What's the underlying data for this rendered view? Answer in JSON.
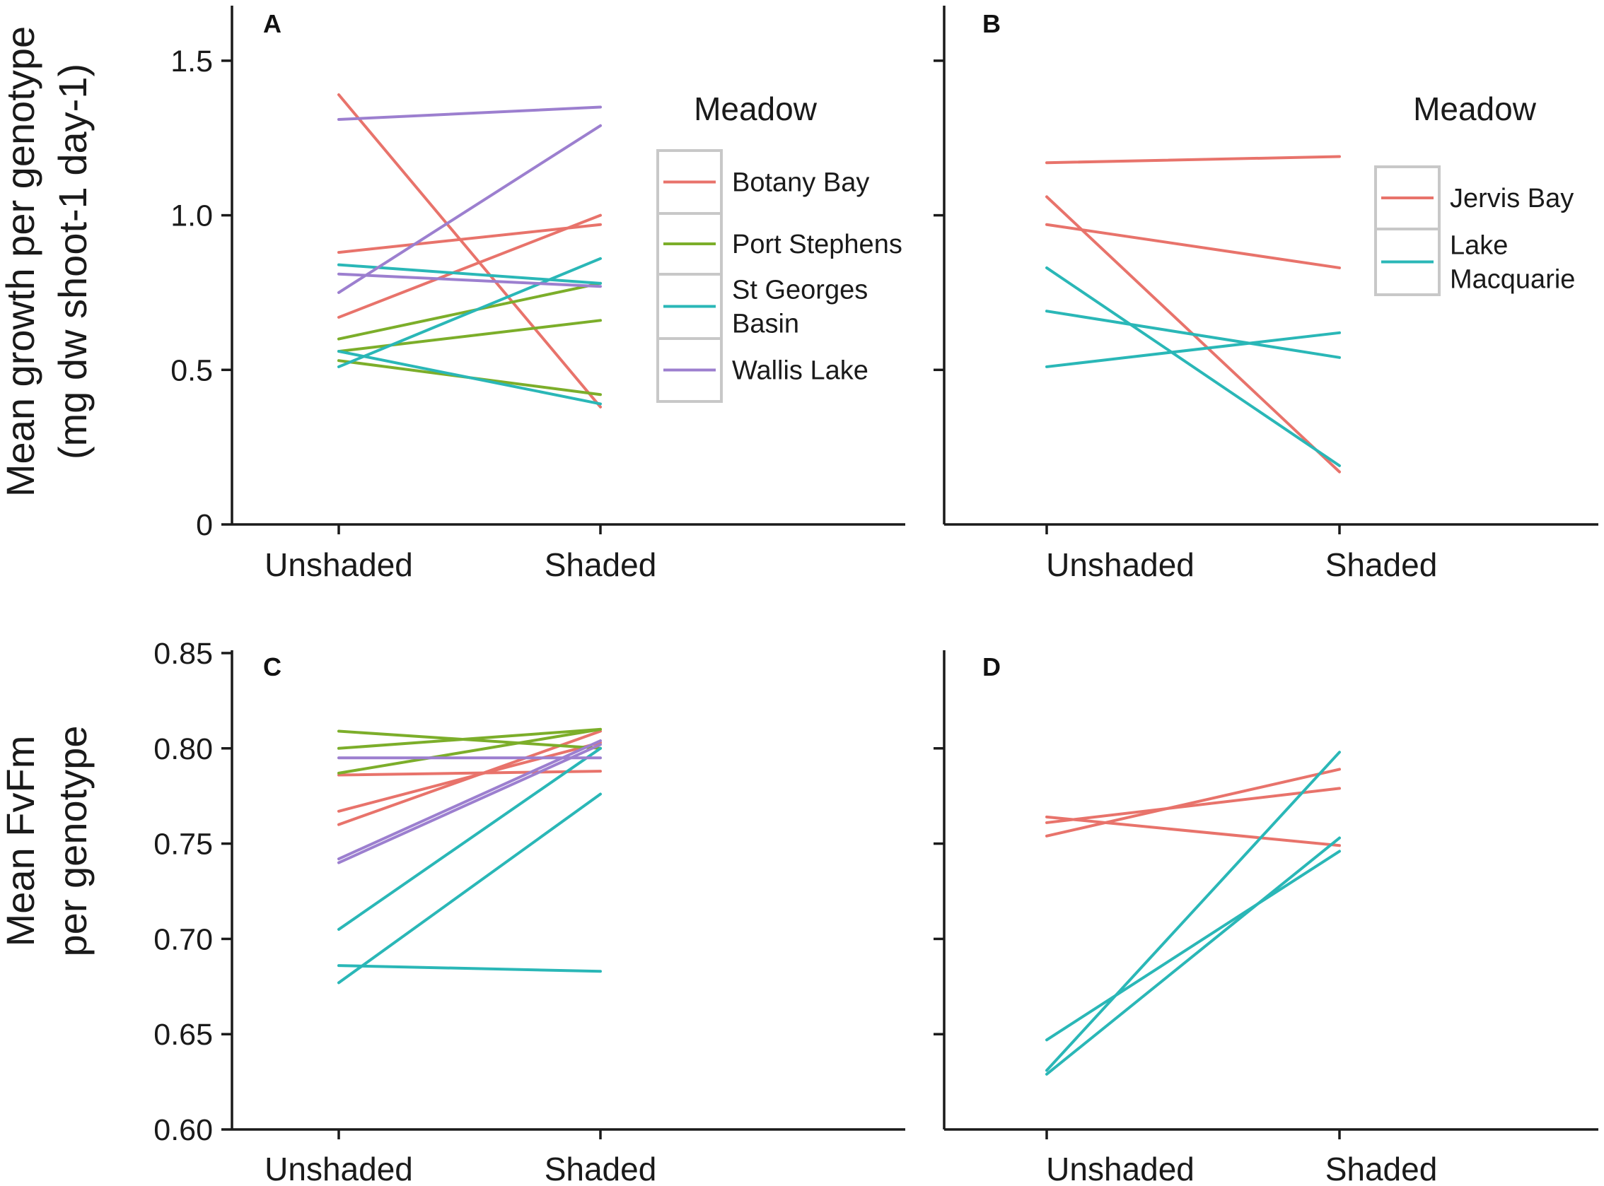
{
  "colors": {
    "Botany Bay": "#e8736b",
    "Port Stephens": "#7cae2a",
    "St Georges Basin": "#2ab7b7",
    "Wallis Lake": "#9c7fcf",
    "Jervis Bay": "#e8736b",
    "Lake Macquarie": "#2ab7b7"
  },
  "chart_data": [
    {
      "panel": "A",
      "type": "line",
      "categories": [
        "Unshaded",
        "Shaded"
      ],
      "ylabel_line1": "Mean growth per genotype",
      "ylabel_line2": "(mg dw shoot-1 day-1)",
      "ylim": [
        0,
        1.65
      ],
      "yticks": [
        0,
        0.5,
        1.0,
        1.5
      ],
      "ytick_labels": [
        "0",
        "0.5",
        "1.0",
        "1.5"
      ],
      "legend": {
        "title": "Meadow",
        "entries": [
          {
            "lines": [
              "Botany Bay"
            ],
            "meadow": "Botany Bay"
          },
          {
            "lines": [
              "Port Stephens"
            ],
            "meadow": "Port Stephens"
          },
          {
            "lines": [
              "St Georges",
              "Basin"
            ],
            "meadow": "St Georges Basin"
          },
          {
            "lines": [
              "Wallis Lake"
            ],
            "meadow": "Wallis Lake"
          }
        ]
      },
      "series": [
        {
          "meadow": "Botany Bay",
          "values": [
            1.39,
            0.38
          ]
        },
        {
          "meadow": "Botany Bay",
          "values": [
            0.88,
            0.97
          ]
        },
        {
          "meadow": "Botany Bay",
          "values": [
            0.67,
            1.0
          ]
        },
        {
          "meadow": "Port Stephens",
          "values": [
            0.6,
            0.78
          ]
        },
        {
          "meadow": "Port Stephens",
          "values": [
            0.56,
            0.66
          ]
        },
        {
          "meadow": "Port Stephens",
          "values": [
            0.53,
            0.42
          ]
        },
        {
          "meadow": "St Georges Basin",
          "values": [
            0.84,
            0.78
          ]
        },
        {
          "meadow": "St Georges Basin",
          "values": [
            0.51,
            0.86
          ]
        },
        {
          "meadow": "St Georges Basin",
          "values": [
            0.56,
            0.39
          ]
        },
        {
          "meadow": "Wallis Lake",
          "values": [
            1.31,
            1.35
          ]
        },
        {
          "meadow": "Wallis Lake",
          "values": [
            0.75,
            1.29
          ]
        },
        {
          "meadow": "Wallis Lake",
          "values": [
            0.81,
            0.77
          ]
        }
      ]
    },
    {
      "panel": "B",
      "type": "line",
      "categories": [
        "Unshaded",
        "Shaded"
      ],
      "ylim": [
        0,
        1.65
      ],
      "yticks": [
        0.5,
        1.0,
        1.5
      ],
      "legend": {
        "title": "Meadow",
        "entries": [
          {
            "lines": [
              "Jervis Bay"
            ],
            "meadow": "Jervis Bay"
          },
          {
            "lines": [
              "Lake",
              "Macquarie"
            ],
            "meadow": "Lake Macquarie"
          }
        ]
      },
      "series": [
        {
          "meadow": "Jervis Bay",
          "values": [
            1.17,
            1.19
          ]
        },
        {
          "meadow": "Jervis Bay",
          "values": [
            0.97,
            0.83
          ]
        },
        {
          "meadow": "Jervis Bay",
          "values": [
            1.06,
            0.17
          ]
        },
        {
          "meadow": "Lake Macquarie",
          "values": [
            0.83,
            0.19
          ]
        },
        {
          "meadow": "Lake Macquarie",
          "values": [
            0.69,
            0.54
          ]
        },
        {
          "meadow": "Lake Macquarie",
          "values": [
            0.51,
            0.62
          ]
        }
      ]
    },
    {
      "panel": "C",
      "type": "line",
      "categories": [
        "Unshaded",
        "Shaded"
      ],
      "ylabel_line1": "Mean FvFm",
      "ylabel_line2": "per genotype",
      "ylim": [
        0.6,
        0.85
      ],
      "yticks": [
        0.6,
        0.65,
        0.7,
        0.75,
        0.8,
        0.85
      ],
      "ytick_labels": [
        "0.60",
        "0.65",
        "0.70",
        "0.75",
        "0.80",
        "0.85"
      ],
      "series": [
        {
          "meadow": "Botany Bay",
          "values": [
            0.786,
            0.788
          ]
        },
        {
          "meadow": "Botany Bay",
          "values": [
            0.767,
            0.803
          ]
        },
        {
          "meadow": "Botany Bay",
          "values": [
            0.76,
            0.809
          ]
        },
        {
          "meadow": "Port Stephens",
          "values": [
            0.809,
            0.8
          ]
        },
        {
          "meadow": "Port Stephens",
          "values": [
            0.8,
            0.81
          ]
        },
        {
          "meadow": "Port Stephens",
          "values": [
            0.787,
            0.81
          ]
        },
        {
          "meadow": "St Georges Basin",
          "values": [
            0.705,
            0.8
          ]
        },
        {
          "meadow": "St Georges Basin",
          "values": [
            0.677,
            0.776
          ]
        },
        {
          "meadow": "St Georges Basin",
          "values": [
            0.686,
            0.683
          ]
        },
        {
          "meadow": "Wallis Lake",
          "values": [
            0.795,
            0.795
          ]
        },
        {
          "meadow": "Wallis Lake",
          "values": [
            0.742,
            0.804
          ]
        },
        {
          "meadow": "Wallis Lake",
          "values": [
            0.74,
            0.802
          ]
        }
      ]
    },
    {
      "panel": "D",
      "type": "line",
      "categories": [
        "Unshaded",
        "Shaded"
      ],
      "ylim": [
        0.6,
        0.85
      ],
      "yticks": [
        0.65,
        0.7,
        0.75,
        0.8
      ],
      "series": [
        {
          "meadow": "Jervis Bay",
          "values": [
            0.764,
            0.749
          ]
        },
        {
          "meadow": "Jervis Bay",
          "values": [
            0.754,
            0.789
          ]
        },
        {
          "meadow": "Jervis Bay",
          "values": [
            0.761,
            0.779
          ]
        },
        {
          "meadow": "Lake Macquarie",
          "values": [
            0.647,
            0.746
          ]
        },
        {
          "meadow": "Lake Macquarie",
          "values": [
            0.631,
            0.798
          ]
        },
        {
          "meadow": "Lake Macquarie",
          "values": [
            0.629,
            0.753
          ]
        }
      ]
    }
  ]
}
